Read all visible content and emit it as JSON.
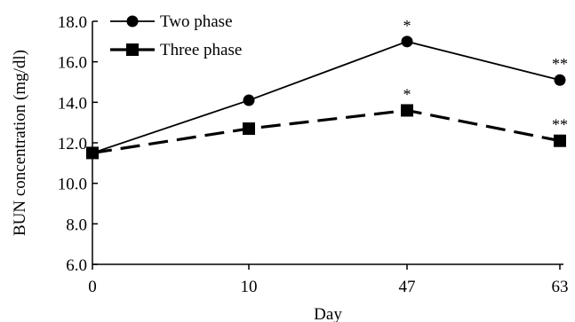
{
  "chart_data": {
    "type": "line",
    "categories": [
      "0",
      "10",
      "47",
      "63"
    ],
    "series": [
      {
        "name": "Two phase",
        "values": [
          11.5,
          14.1,
          17.0,
          15.1
        ],
        "marker": "circle",
        "line": "solid",
        "annotations": [
          "",
          "",
          "*",
          "**"
        ]
      },
      {
        "name": "Three phase",
        "values": [
          11.5,
          12.7,
          13.6,
          12.1
        ],
        "marker": "square",
        "line": "dashed",
        "annotations": [
          "",
          "",
          "*",
          "**"
        ]
      }
    ],
    "xlabel": "Day",
    "ylabel": "BUN concentration (mg/dl)",
    "ylim": [
      6.0,
      18.0
    ],
    "yticks": [
      "6.0",
      "8.0",
      "10.0",
      "12.0",
      "14.0",
      "16.0",
      "18.0"
    ],
    "legend": "top-left",
    "grid": false,
    "color": "#000000"
  }
}
